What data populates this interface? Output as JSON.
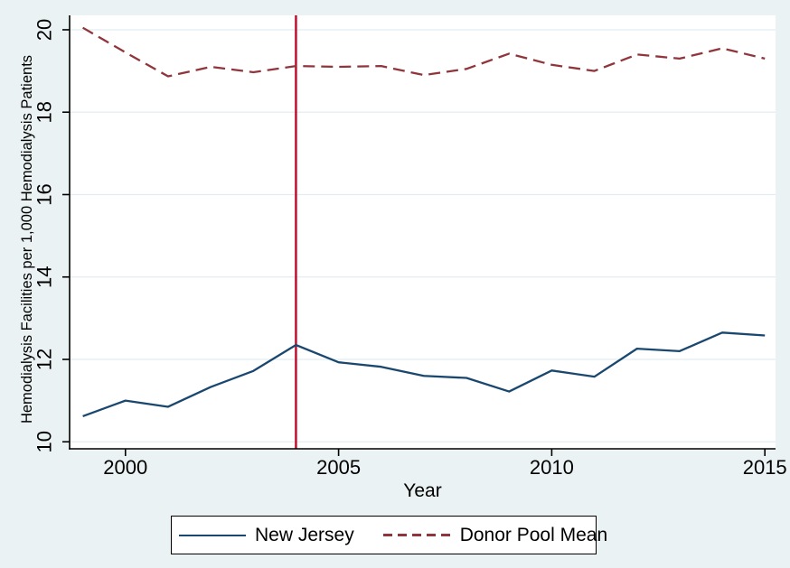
{
  "figure": {
    "background_color": "#EAF2F3",
    "plot_background_color": "#FFFFFF",
    "grid_color": "#E2EDF3",
    "axis_color": "#000000",
    "text_color": "#000000"
  },
  "chart_data": {
    "type": "line",
    "title": "",
    "xlabel": "Year",
    "ylabel": "Hemodialysis Facilities per 1,000 Hemodialysis Patients",
    "x": [
      1999,
      2000,
      2001,
      2002,
      2003,
      2004,
      2005,
      2006,
      2007,
      2008,
      2009,
      2010,
      2011,
      2012,
      2013,
      2014,
      2015
    ],
    "series": [
      {
        "name": "New Jersey",
        "color": "#1A476F",
        "style": "solid",
        "values": [
          10.62,
          11.0,
          10.85,
          11.33,
          11.72,
          12.35,
          11.93,
          11.82,
          11.6,
          11.55,
          11.22,
          11.73,
          11.58,
          12.26,
          12.2,
          12.65,
          12.58
        ]
      },
      {
        "name": "Donor Pool Mean",
        "color": "#90353B",
        "style": "dashed",
        "values": [
          20.05,
          19.45,
          18.87,
          19.1,
          18.97,
          19.12,
          19.1,
          19.12,
          18.9,
          19.05,
          19.42,
          19.15,
          19.0,
          19.4,
          19.3,
          19.55,
          19.3
        ]
      }
    ],
    "vline": {
      "x": 2004,
      "color": "#C10E2E"
    },
    "x_ticks": [
      2000,
      2005,
      2010,
      2015
    ],
    "y_ticks": [
      10,
      12,
      14,
      16,
      18,
      20
    ],
    "xlim": [
      1998.69,
      2015.25
    ],
    "ylim": [
      9.83,
      20.35
    ],
    "grid": "horizontal",
    "legend_position": "bottom"
  }
}
